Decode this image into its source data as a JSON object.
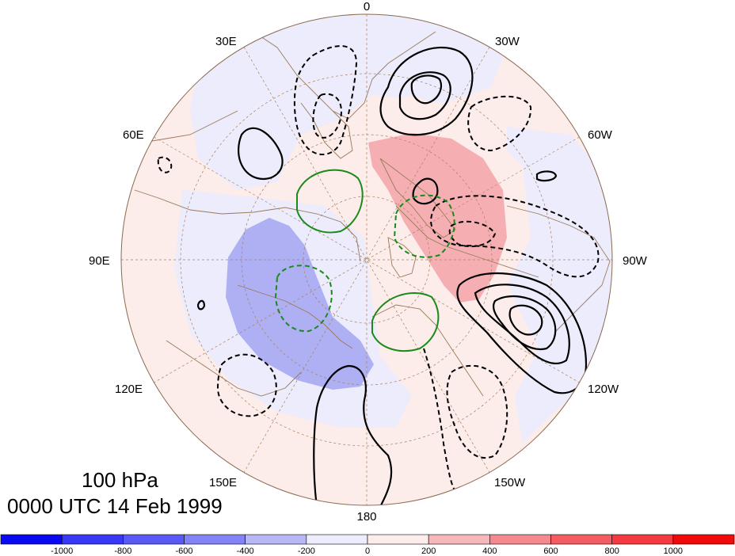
{
  "map": {
    "level": "100 hPa",
    "valid_time": "0000 UTC 14 Feb 1999",
    "projection": "north-polar-stereographic",
    "longitude_labels": [
      "0",
      "30W",
      "60W",
      "90W",
      "120W",
      "150W",
      "180",
      "150E",
      "120E",
      "90E",
      "60E",
      "30E"
    ],
    "colors": {
      "coastline": "#9b7a5a",
      "grid": "#a88060",
      "contour_black": "#000000",
      "contour_green": "#1a8a1a",
      "fill_negative_strong": "#a9a9f2",
      "fill_negative_weak": "#ececfc",
      "fill_positive_strong": "#f4a9ad",
      "fill_positive_weak": "#fcecea"
    },
    "contour_styles": [
      "solid-black-positive",
      "dashed-black-negative",
      "solid-green-positive",
      "dashed-green-negative"
    ]
  },
  "colorbar": {
    "tick_labels": [
      "-1000",
      "-800",
      "-600",
      "-400",
      "-200",
      "0",
      "200",
      "400",
      "600",
      "800",
      "1000"
    ],
    "colors": [
      "#0a0af2",
      "#3838f5",
      "#5959f5",
      "#8383f5",
      "#b8b8f7",
      "#ececfc",
      "#fdecec",
      "#f7b8bc",
      "#f48a8f",
      "#f45c62",
      "#f43a40",
      "#f00a0a"
    ]
  }
}
